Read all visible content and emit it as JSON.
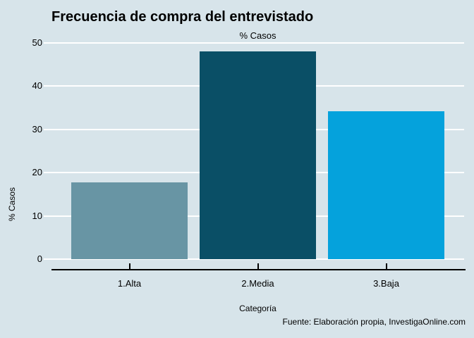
{
  "chart_data": {
    "type": "bar",
    "title": "Frecuencia de compra del entrevistado",
    "subtitle": "% Casos",
    "ylabel": "% Casos",
    "xlabel": "Categoría",
    "categories": [
      "1.Alta",
      "2.Media",
      "3.Baja"
    ],
    "values": [
      17.7,
      48.1,
      34.2
    ],
    "ylim": [
      0,
      50
    ],
    "yticks": [
      0,
      10,
      20,
      30,
      40,
      50
    ],
    "bar_colors": [
      "#6895a4",
      "#0a4f66",
      "#05a2dc"
    ],
    "grid": "horizontal white gridlines",
    "legend": "none",
    "source": "Fuente: Elaboración propia, InvestigaOnline.com"
  },
  "colors": {
    "background": "#d7e4ea",
    "gridline": "#ffffff",
    "axis": "#000000",
    "text": "#000000"
  }
}
